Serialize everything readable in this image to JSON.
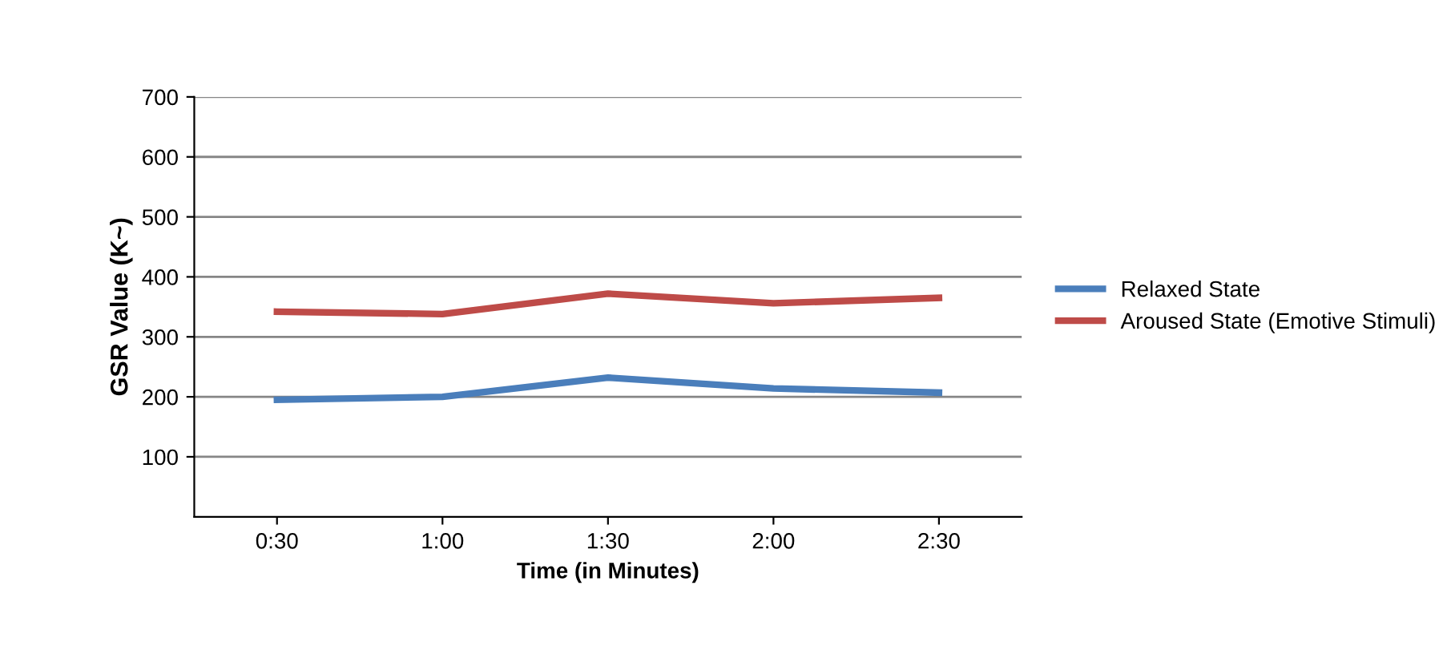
{
  "chart_data": {
    "type": "line",
    "xlabel": "Time (in Minutes)",
    "ylabel": "GSR Value (K~)",
    "categories": [
      "0:30",
      "1:00",
      "1:30",
      "2:00",
      "2:30"
    ],
    "series": [
      {
        "name": "Relaxed State",
        "color": "#4a7ebb",
        "values": [
          195,
          200,
          232,
          214,
          207
        ]
      },
      {
        "name": "Aroused State (Emotive Stimuli)",
        "color": "#be4b48",
        "values": [
          342,
          338,
          372,
          356,
          365
        ]
      }
    ],
    "ylim": [
      0,
      700
    ],
    "yticks": [
      100,
      200,
      300,
      400,
      500,
      600,
      700
    ],
    "grid": "y",
    "legend": "right",
    "marker": "none",
    "line_style": "solid"
  }
}
